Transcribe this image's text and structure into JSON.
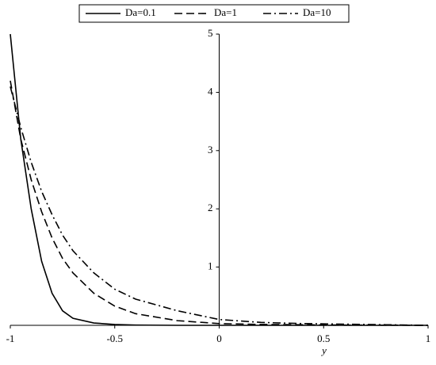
{
  "chart_data": {
    "type": "line",
    "x_label": "y",
    "x": [
      -1,
      -0.95,
      -0.9,
      -0.85,
      -0.8,
      -0.75,
      -0.7,
      -0.6,
      -0.5,
      -0.4,
      -0.2,
      0,
      0.2,
      0.4,
      0.6,
      0.8,
      1
    ],
    "series": [
      {
        "name": "Da=0.1",
        "color": "#000000",
        "dash": "solid",
        "values": [
          5,
          3.2,
          2.0,
          1.1,
          0.55,
          0.25,
          0.12,
          0.04,
          0.015,
          0.005,
          0,
          0,
          0,
          0,
          0,
          0,
          0
        ]
      },
      {
        "name": "Da=1",
        "color": "#000000",
        "dash": "dash",
        "values": [
          4.2,
          3.2,
          2.5,
          1.95,
          1.5,
          1.15,
          0.9,
          0.55,
          0.33,
          0.2,
          0.08,
          0.03,
          0.015,
          0.01,
          0.005,
          0.003,
          0
        ]
      },
      {
        "name": "Da=10",
        "color": "#000000",
        "dash": "dashdot",
        "values": [
          4.1,
          3.4,
          2.8,
          2.3,
          1.9,
          1.55,
          1.28,
          0.9,
          0.62,
          0.45,
          0.25,
          0.1,
          0.05,
          0.03,
          0.02,
          0.01,
          0
        ]
      }
    ],
    "xlim": [
      -1,
      1
    ],
    "xticks": [
      -1,
      -0.5,
      0,
      0.5,
      1
    ],
    "ylim": [
      0,
      5
    ],
    "yticks": [
      1,
      2,
      3,
      4,
      5
    ],
    "legend": "top"
  }
}
